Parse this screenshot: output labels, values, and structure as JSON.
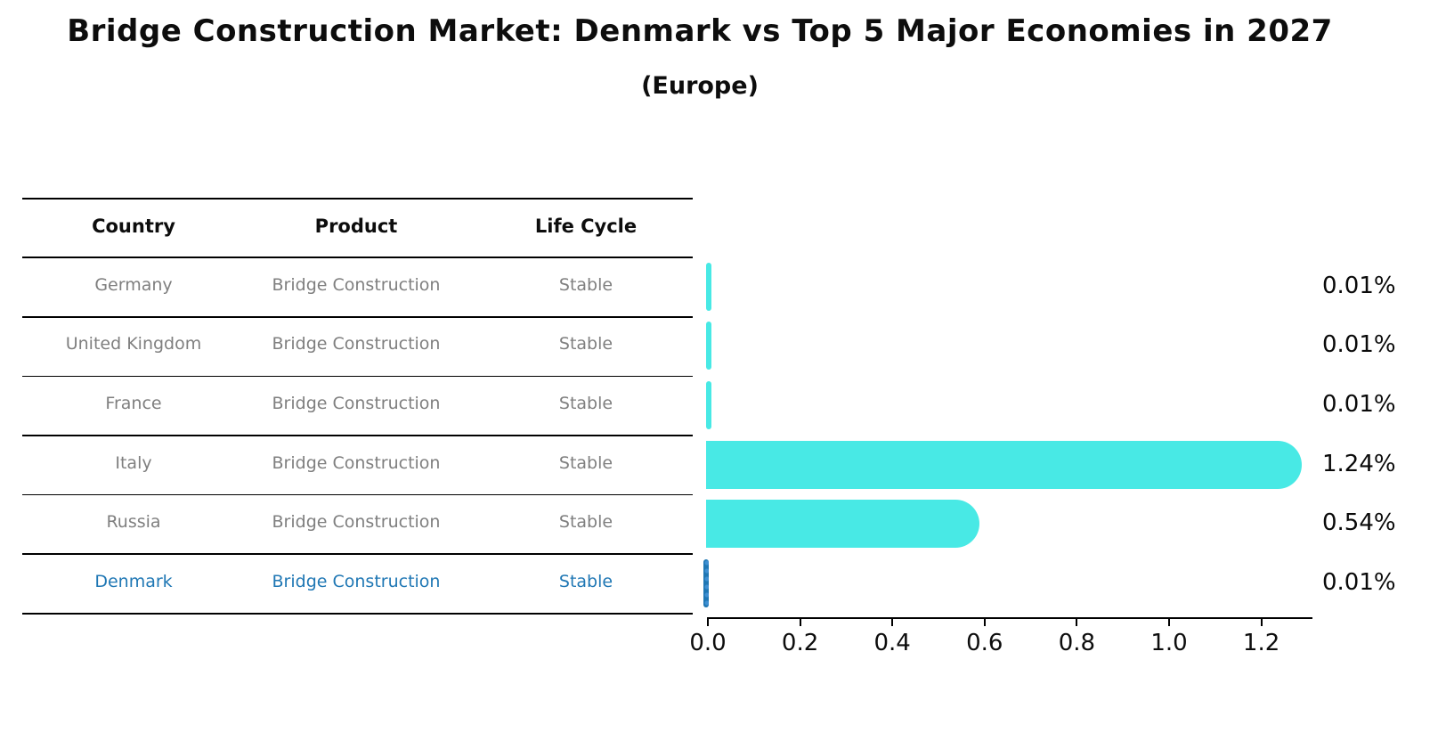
{
  "title": "Bridge Construction Market: Denmark vs Top 5 Major Economies in 2027",
  "subtitle": "(Europe)",
  "table": {
    "headers": [
      "Country",
      "Product",
      "Life Cycle"
    ],
    "rows": [
      {
        "country": "Germany",
        "product": "Bridge Construction",
        "life_cycle": "Stable",
        "highlighted": false
      },
      {
        "country": "United Kingdom",
        "product": "Bridge Construction",
        "life_cycle": "Stable",
        "highlighted": false
      },
      {
        "country": "France",
        "product": "Bridge Construction",
        "life_cycle": "Stable",
        "highlighted": false
      },
      {
        "country": "Italy",
        "product": "Bridge Construction",
        "life_cycle": "Stable",
        "highlighted": false
      },
      {
        "country": "Russia",
        "product": "Bridge Construction",
        "life_cycle": "Stable",
        "highlighted": false
      },
      {
        "country": "Denmark",
        "product": "Bridge Construction",
        "life_cycle": "Stable",
        "highlighted": true
      }
    ]
  },
  "chart_data": {
    "type": "bar",
    "orientation": "horizontal",
    "title": "Bridge Construction Market: Denmark vs Top 5 Major Economies in 2027 (Europe)",
    "xlabel": "",
    "ylabel": "",
    "categories": [
      "Germany",
      "United Kingdom",
      "France",
      "Italy",
      "Russia",
      "Denmark"
    ],
    "values": [
      0.01,
      0.01,
      0.01,
      1.24,
      0.54,
      0.01
    ],
    "value_labels": [
      "0.01%",
      "0.01%",
      "0.01%",
      "1.24%",
      "0.54%",
      "0.01%"
    ],
    "x_ticks": [
      "0.0",
      "0.2",
      "0.4",
      "0.6",
      "0.8",
      "1.0",
      "1.2"
    ],
    "x_tick_values": [
      0.0,
      0.2,
      0.4,
      0.6,
      0.8,
      1.0,
      1.2
    ],
    "xlim": [
      0,
      1.31
    ],
    "grid": false,
    "legend": false,
    "bar_color": "#48E9E5",
    "highlight_color": "#1f77b4",
    "highlight_index": 5
  },
  "colors": {
    "background": "#ffffff",
    "table_text": "#7f7f7f",
    "header_text": "#0d0d0d",
    "line": "#000000",
    "bar_cyan": "#48E9E5",
    "accent_blue": "#1f77b4"
  }
}
